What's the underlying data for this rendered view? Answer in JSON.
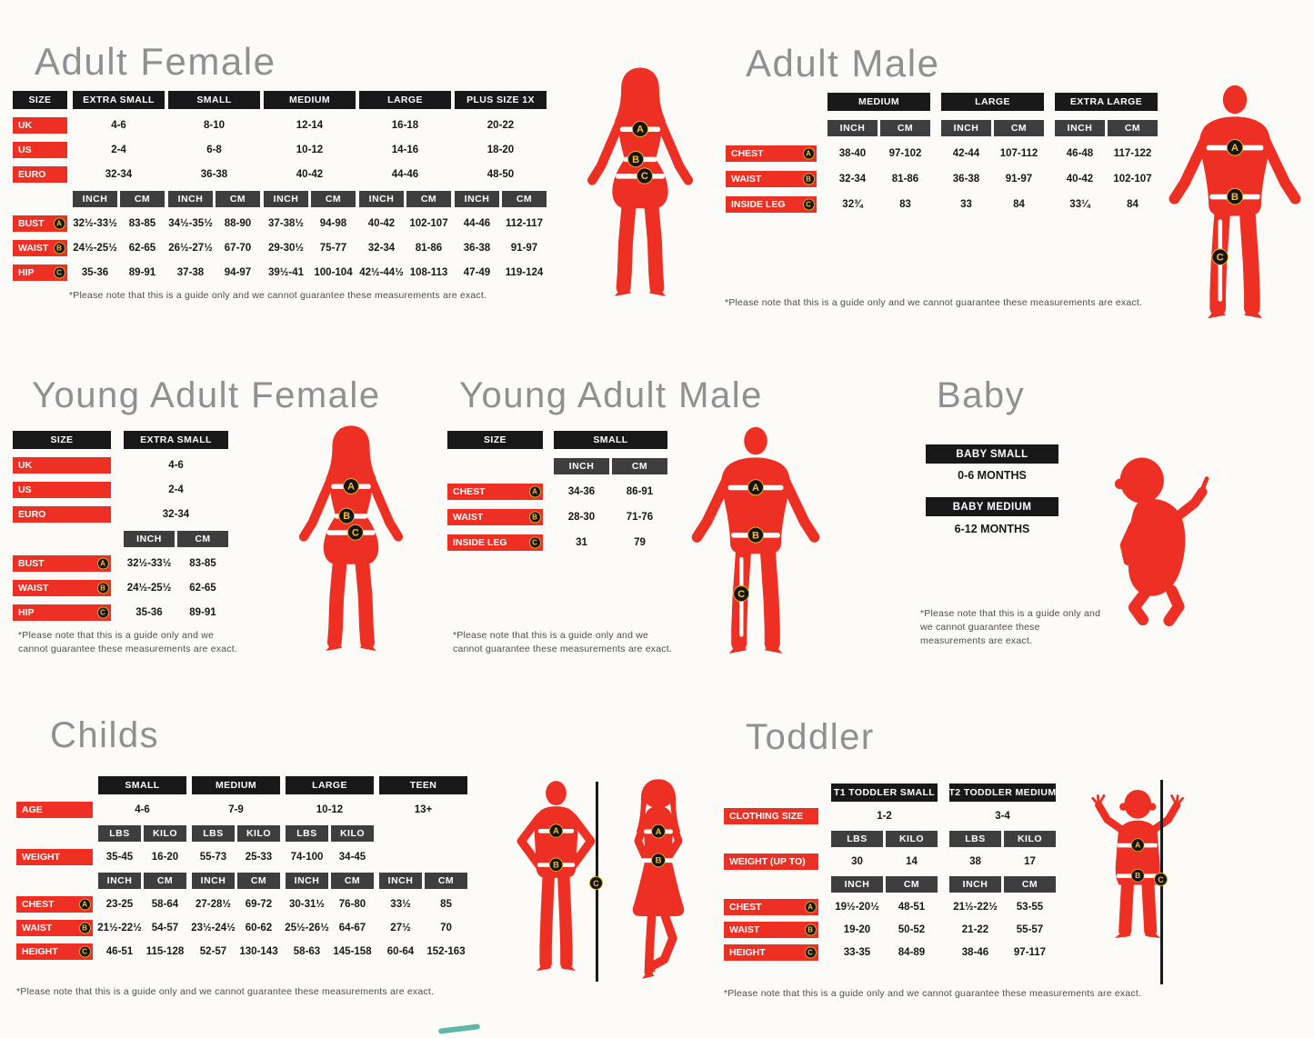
{
  "palette": {
    "accent_red": "#ed2f24",
    "header_black": "#181818",
    "unit_gray": "#3e3e3e",
    "marker_yellow": "#f3c028",
    "title_gray": "#8e9092"
  },
  "markers": {
    "a": "A",
    "b": "B",
    "c": "C"
  },
  "disclaimer": "*Please note that this is a guide only and we cannot guarantee these measurements are exact.",
  "sections": {
    "adult_female": {
      "title": "Adult Female",
      "rows": [
        {
          "t": "h",
          "label": "SIZE",
          "cells": [
            "EXTRA SMALL",
            "SMALL",
            "MEDIUM",
            "LARGE",
            "PLUS SIZE 1X"
          ]
        },
        {
          "t": "r",
          "label": "UK",
          "cells": [
            "4-6",
            "8-10",
            "12-14",
            "16-18",
            "20-22"
          ]
        },
        {
          "t": "r",
          "label": "US",
          "cells": [
            "2-4",
            "6-8",
            "10-12",
            "14-16",
            "18-20"
          ]
        },
        {
          "t": "r",
          "label": "EURO",
          "cells": [
            "32-34",
            "36-38",
            "40-42",
            "44-46",
            "48-50"
          ]
        },
        {
          "t": "u",
          "cells": [
            "INCH",
            "CM",
            "INCH",
            "CM",
            "INCH",
            "CM",
            "INCH",
            "CM",
            "INCH",
            "CM"
          ]
        },
        {
          "t": "m",
          "label": "BUST",
          "marker": "A",
          "cells": [
            "32½-33½",
            "83-85",
            "34½-35½",
            "88-90",
            "37-38½",
            "94-98",
            "40-42",
            "102-107",
            "44-46",
            "112-117"
          ]
        },
        {
          "t": "m",
          "label": "WAIST",
          "marker": "B",
          "cells": [
            "24½-25½",
            "62-65",
            "26½-27½",
            "67-70",
            "29-30½",
            "75-77",
            "32-34",
            "81-86",
            "36-38",
            "91-97"
          ]
        },
        {
          "t": "m",
          "label": "HIP",
          "marker": "C",
          "cells": [
            "35-36",
            "89-91",
            "37-38",
            "94-97",
            "39½-41",
            "100-104",
            "42½-44½",
            "108-113",
            "47-49",
            "119-124"
          ]
        }
      ]
    },
    "adult_male": {
      "title": "Adult Male",
      "rows": [
        {
          "t": "h",
          "label": "",
          "cells": [
            "MEDIUM",
            "LARGE",
            "EXTRA LARGE"
          ]
        },
        {
          "t": "u",
          "cells": [
            "INCH",
            "CM",
            "INCH",
            "CM",
            "INCH",
            "CM"
          ]
        },
        {
          "t": "m",
          "label": "CHEST",
          "marker": "A",
          "cells": [
            "38-40",
            "97-102",
            "42-44",
            "107-112",
            "46-48",
            "117-122"
          ]
        },
        {
          "t": "m",
          "label": "WAIST",
          "marker": "B",
          "cells": [
            "32-34",
            "81-86",
            "36-38",
            "91-97",
            "40-42",
            "102-107"
          ]
        },
        {
          "t": "m",
          "label": "INSIDE LEG",
          "marker": "C",
          "cells": [
            "32¾",
            "83",
            "33",
            "84",
            "33¼",
            "84"
          ]
        }
      ]
    },
    "young_adult_female": {
      "title": "Young Adult Female",
      "rows": [
        {
          "t": "h",
          "label": "SIZE",
          "cells": [
            "EXTRA SMALL"
          ]
        },
        {
          "t": "r",
          "label": "UK",
          "cells": [
            "4-6"
          ]
        },
        {
          "t": "r",
          "label": "US",
          "cells": [
            "2-4"
          ]
        },
        {
          "t": "r",
          "label": "EURO",
          "cells": [
            "32-34"
          ]
        },
        {
          "t": "u",
          "cells": [
            "INCH",
            "CM"
          ]
        },
        {
          "t": "m",
          "label": "BUST",
          "marker": "A",
          "cells": [
            "32½-33½",
            "83-85"
          ]
        },
        {
          "t": "m",
          "label": "WAIST",
          "marker": "B",
          "cells": [
            "24½-25½",
            "62-65"
          ]
        },
        {
          "t": "m",
          "label": "HIP",
          "marker": "C",
          "cells": [
            "35-36",
            "89-91"
          ]
        }
      ]
    },
    "young_adult_male": {
      "title": "Young Adult Male",
      "rows": [
        {
          "t": "h",
          "label": "SIZE",
          "cells": [
            "SMALL"
          ]
        },
        {
          "t": "u",
          "cells": [
            "INCH",
            "CM"
          ]
        },
        {
          "t": "m",
          "label": "CHEST",
          "marker": "A",
          "cells": [
            "34-36",
            "86-91"
          ]
        },
        {
          "t": "m",
          "label": "WAIST",
          "marker": "B",
          "cells": [
            "28-30",
            "71-76"
          ]
        },
        {
          "t": "m",
          "label": "INSIDE LEG",
          "marker": "C",
          "cells": [
            "31",
            "79"
          ]
        }
      ]
    },
    "baby": {
      "title": "Baby",
      "labels": [
        {
          "size": "BABY SMALL",
          "age": "0-6 MONTHS"
        },
        {
          "size": "BABY MEDIUM",
          "age": "6-12 MONTHS"
        }
      ]
    },
    "childs": {
      "title": "Childs",
      "rows": [
        {
          "t": "h",
          "label": "",
          "cells": [
            "SMALL",
            "MEDIUM",
            "LARGE",
            "TEEN"
          ]
        },
        {
          "t": "r",
          "label": "AGE",
          "cells": [
            "4-6",
            "7-9",
            "10-12",
            "13+"
          ]
        },
        {
          "t": "u",
          "cells": [
            "LBS",
            "KILO",
            "LBS",
            "KILO",
            "LBS",
            "KILO",
            "",
            ""
          ]
        },
        {
          "t": "rm",
          "label": "WEIGHT",
          "cells": [
            "35-45",
            "16-20",
            "55-73",
            "25-33",
            "74-100",
            "34-45",
            "",
            ""
          ]
        },
        {
          "t": "u",
          "cells": [
            "INCH",
            "CM",
            "INCH",
            "CM",
            "INCH",
            "CM",
            "INCH",
            "CM"
          ]
        },
        {
          "t": "m",
          "label": "CHEST",
          "marker": "A",
          "cells": [
            "23-25",
            "58-64",
            "27-28½",
            "69-72",
            "30-31½",
            "76-80",
            "33½",
            "85"
          ]
        },
        {
          "t": "m",
          "label": "WAIST",
          "marker": "B",
          "cells": [
            "21½-22½",
            "54-57",
            "23½-24½",
            "60-62",
            "25½-26½",
            "64-67",
            "27½",
            "70"
          ]
        },
        {
          "t": "m",
          "label": "HEIGHT",
          "marker": "C",
          "cells": [
            "46-51",
            "115-128",
            "52-57",
            "130-143",
            "58-63",
            "145-158",
            "60-64",
            "152-163"
          ]
        }
      ]
    },
    "toddler": {
      "title": "Toddler",
      "rows": [
        {
          "t": "h",
          "label": "",
          "cells": [
            "T1 TODDLER SMALL",
            "T2 TODDLER MEDIUM"
          ]
        },
        {
          "t": "r",
          "label": "CLOTHING SIZE",
          "cells": [
            "1-2",
            "3-4"
          ]
        },
        {
          "t": "u",
          "cells": [
            "LBS",
            "KILO",
            "LBS",
            "KILO"
          ]
        },
        {
          "t": "rm",
          "label": "WEIGHT (UP TO)",
          "cells": [
            "30",
            "14",
            "38",
            "17"
          ]
        },
        {
          "t": "u",
          "cells": [
            "INCH",
            "CM",
            "INCH",
            "CM"
          ]
        },
        {
          "t": "m",
          "label": "CHEST",
          "marker": "A",
          "cells": [
            "19½-20½",
            "48-51",
            "21½-22½",
            "53-55"
          ]
        },
        {
          "t": "m",
          "label": "WAIST",
          "marker": "B",
          "cells": [
            "19-20",
            "50-52",
            "21-22",
            "55-57"
          ]
        },
        {
          "t": "m",
          "label": "HEIGHT",
          "marker": "C",
          "cells": [
            "33-35",
            "84-89",
            "38-46",
            "97-117"
          ]
        }
      ]
    }
  }
}
